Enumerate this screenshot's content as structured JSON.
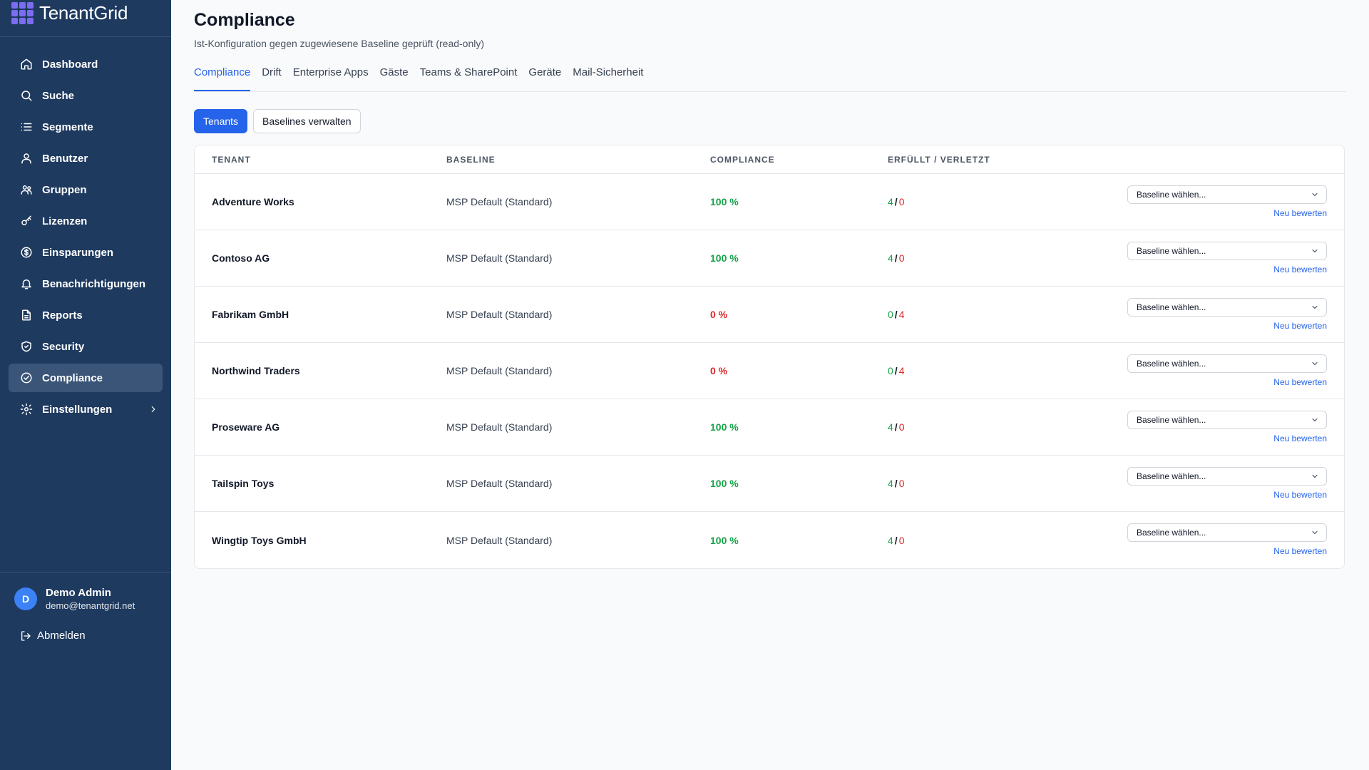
{
  "brand": {
    "name": "TenantGrid"
  },
  "sidebar": {
    "items": [
      {
        "label": "Dashboard",
        "icon": "home-icon"
      },
      {
        "label": "Suche",
        "icon": "search-icon"
      },
      {
        "label": "Segmente",
        "icon": "list-icon"
      },
      {
        "label": "Benutzer",
        "icon": "users-icon"
      },
      {
        "label": "Gruppen",
        "icon": "group-icon"
      },
      {
        "label": "Lizenzen",
        "icon": "key-icon"
      },
      {
        "label": "Einsparungen",
        "icon": "dollar-icon"
      },
      {
        "label": "Benachrichtigungen",
        "icon": "bell-icon"
      },
      {
        "label": "Reports",
        "icon": "file-icon"
      },
      {
        "label": "Security",
        "icon": "shield-icon"
      },
      {
        "label": "Compliance",
        "icon": "check-circle-icon",
        "active": true
      },
      {
        "label": "Einstellungen",
        "icon": "gear-icon"
      }
    ]
  },
  "user": {
    "initial": "D",
    "name": "Demo Admin",
    "email": "demo@tenantgrid.net",
    "logout_label": "Abmelden"
  },
  "header": {
    "title": "Compliance",
    "subtitle": "Ist-Konfiguration gegen zugewiesene Baseline geprüft (read-only)"
  },
  "tabs": [
    "Compliance",
    "Drift",
    "Enterprise Apps",
    "Gäste",
    "Teams & SharePoint",
    "Geräte",
    "Mail-Sicherheit"
  ],
  "toggles": {
    "tenants": "Tenants",
    "manage": "Baselines verwalten"
  },
  "table": {
    "headers": {
      "tenant": "Tenant",
      "baseline": "Baseline",
      "compliance": "Compliance",
      "ratio": "Erfüllt / Verletzt"
    },
    "select_placeholder": "Baseline wählen...",
    "reeval_label": "Neu bewerten",
    "rows": [
      {
        "tenant": "Adventure Works",
        "baseline": "MSP Default (Standard)",
        "compliance": "100 %",
        "ok": "4",
        "violated": "0",
        "status": "good"
      },
      {
        "tenant": "Contoso AG",
        "baseline": "MSP Default (Standard)",
        "compliance": "100 %",
        "ok": "4",
        "violated": "0",
        "status": "good"
      },
      {
        "tenant": "Fabrikam GmbH",
        "baseline": "MSP Default (Standard)",
        "compliance": "0 %",
        "ok": "0",
        "violated": "4",
        "status": "bad"
      },
      {
        "tenant": "Northwind Traders",
        "baseline": "MSP Default (Standard)",
        "compliance": "0 %",
        "ok": "0",
        "violated": "4",
        "status": "bad"
      },
      {
        "tenant": "Proseware AG",
        "baseline": "MSP Default (Standard)",
        "compliance": "100 %",
        "ok": "4",
        "violated": "0",
        "status": "good"
      },
      {
        "tenant": "Tailspin Toys",
        "baseline": "MSP Default (Standard)",
        "compliance": "100 %",
        "ok": "4",
        "violated": "0",
        "status": "good"
      },
      {
        "tenant": "Wingtip Toys GmbH",
        "baseline": "MSP Default (Standard)",
        "compliance": "100 %",
        "ok": "4",
        "violated": "0",
        "status": "good"
      }
    ]
  },
  "colors": {
    "sidebar": "#1e3a5f",
    "accent": "#2563eb",
    "good": "#16a34a",
    "bad": "#dc2626"
  }
}
